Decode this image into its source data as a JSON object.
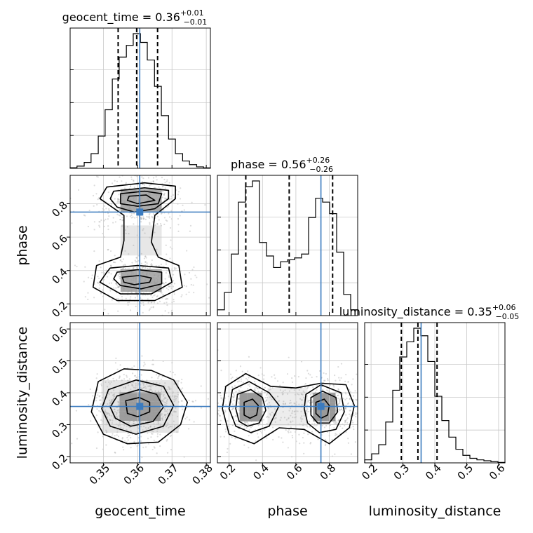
{
  "chart_data": {
    "type": "corner",
    "parameters": [
      "geocent_time",
      "phase",
      "luminosity_distance"
    ],
    "ranges": {
      "geocent_time": [
        0.3403,
        0.3812
      ],
      "phase": [
        0.13,
        0.97
      ],
      "luminosity_distance": [
        0.18,
        0.62
      ]
    },
    "ticks": {
      "geocent_time": [
        0.35,
        0.36,
        0.37,
        0.38
      ],
      "phase": [
        0.2,
        0.4,
        0.6,
        0.8
      ],
      "luminosity_distance": [
        0.2,
        0.3,
        0.4,
        0.5,
        0.6
      ]
    },
    "tick_labels": {
      "geocent_time": [
        "0.35",
        "0.36",
        "0.37",
        "0.38"
      ],
      "phase": [
        "0.2",
        "0.4",
        "0.6",
        "0.8"
      ],
      "luminosity_distance": [
        "0.2",
        "0.3",
        "0.4",
        "0.5",
        "0.6"
      ]
    },
    "truth": {
      "geocent_time": 0.3606,
      "phase": 0.75,
      "luminosity_distance": 0.357
    },
    "titles": {
      "geocent_time": {
        "name": "geocent_time",
        "median": "0.36",
        "plus": "+0.01",
        "minus": "−0.01"
      },
      "phase": {
        "name": "phase",
        "median": "0.56",
        "plus": "+0.26",
        "minus": "−0.26"
      },
      "luminosity_distance": {
        "name": "luminosity_distance",
        "median": "0.35",
        "plus": "+0.06",
        "minus": "−0.05"
      }
    },
    "quantiles": {
      "geocent_time": [
        0.3543,
        0.3597,
        0.3658
      ],
      "phase": [
        0.3,
        0.56,
        0.82
      ],
      "luminosity_distance": [
        0.295,
        0.347,
        0.407
      ]
    },
    "histograms": {
      "geocent_time": {
        "edges": [
          0.3403,
          0.3423,
          0.3444,
          0.3464,
          0.3485,
          0.3505,
          0.3526,
          0.3546,
          0.3567,
          0.3587,
          0.3608,
          0.3628,
          0.3649,
          0.3669,
          0.369,
          0.371,
          0.3731,
          0.3751,
          0.3772,
          0.3792,
          0.3812
        ],
        "counts": [
          0.4,
          1.5,
          4,
          10,
          22,
          40,
          61,
          76,
          84,
          92,
          86,
          74,
          56,
          36,
          20,
          10,
          5,
          2.5,
          1,
          0.3
        ]
      },
      "phase": {
        "edges": [
          0.13,
          0.172,
          0.214,
          0.256,
          0.298,
          0.34,
          0.382,
          0.424,
          0.466,
          0.508,
          0.55,
          0.592,
          0.634,
          0.676,
          0.718,
          0.76,
          0.802,
          0.844,
          0.886,
          0.928,
          0.97
        ],
        "counts": [
          3,
          12,
          32,
          59,
          67,
          70,
          38,
          31,
          25,
          28,
          29,
          30,
          32,
          51,
          61,
          59,
          53,
          33,
          11,
          3
        ]
      },
      "luminosity_distance": {
        "edges": [
          0.18,
          0.202,
          0.224,
          0.246,
          0.268,
          0.29,
          0.312,
          0.334,
          0.356,
          0.378,
          0.4,
          0.422,
          0.444,
          0.466,
          0.488,
          0.51,
          0.532,
          0.554,
          0.576,
          0.598,
          0.62
        ],
        "counts": [
          2,
          6,
          12,
          27,
          48,
          70,
          80,
          89,
          84,
          67,
          44,
          28,
          17,
          9,
          5,
          3,
          2,
          1.4,
          0.8,
          0.3
        ]
      }
    },
    "joint_2d": {
      "phase_vs_geocent_time": {
        "contours": [
          [
            [
              0.351,
              0.9
            ],
            [
              0.362,
              0.925
            ],
            [
              0.371,
              0.905
            ],
            [
              0.371,
              0.83
            ],
            [
              0.365,
              0.73
            ],
            [
              0.364,
              0.57
            ],
            [
              0.366,
              0.48
            ],
            [
              0.372,
              0.43
            ],
            [
              0.373,
              0.3
            ],
            [
              0.365,
              0.22
            ],
            [
              0.354,
              0.22
            ],
            [
              0.347,
              0.3
            ],
            [
              0.348,
              0.43
            ],
            [
              0.355,
              0.48
            ],
            [
              0.356,
              0.58
            ],
            [
              0.356,
              0.73
            ],
            [
              0.349,
              0.83
            ]
          ],
          [
            [
              0.353,
              0.875
            ],
            [
              0.362,
              0.895
            ],
            [
              0.369,
              0.88
            ],
            [
              0.369,
              0.83
            ],
            [
              0.365,
              0.77
            ],
            [
              0.359,
              0.75
            ],
            [
              0.354,
              0.78
            ],
            [
              0.352,
              0.83
            ]
          ],
          [
            [
              0.352,
              0.415
            ],
            [
              0.36,
              0.43
            ],
            [
              0.369,
              0.415
            ],
            [
              0.37,
              0.33
            ],
            [
              0.364,
              0.26
            ],
            [
              0.355,
              0.26
            ],
            [
              0.349,
              0.33
            ],
            [
              0.351,
              0.39
            ]
          ],
          [
            [
              0.355,
              0.86
            ],
            [
              0.362,
              0.875
            ],
            [
              0.367,
              0.86
            ],
            [
              0.366,
              0.8
            ],
            [
              0.36,
              0.785
            ],
            [
              0.355,
              0.8
            ]
          ],
          [
            [
              0.354,
              0.39
            ],
            [
              0.36,
              0.405
            ],
            [
              0.367,
              0.39
            ],
            [
              0.367,
              0.32
            ],
            [
              0.361,
              0.29
            ],
            [
              0.355,
              0.31
            ],
            [
              0.353,
              0.35
            ]
          ],
          [
            [
              0.3575,
              0.845
            ],
            [
              0.3625,
              0.852
            ],
            [
              0.365,
              0.82
            ],
            [
              0.36,
              0.8
            ],
            [
              0.357,
              0.82
            ]
          ],
          [
            [
              0.3555,
              0.36
            ],
            [
              0.3605,
              0.37
            ],
            [
              0.364,
              0.355
            ],
            [
              0.3635,
              0.33
            ],
            [
              0.359,
              0.315
            ],
            [
              0.356,
              0.33
            ]
          ]
        ]
      },
      "luminosity_distance_vs_geocent_time": {
        "contours": [
          [
            [
              0.3485,
              0.435
            ],
            [
              0.356,
              0.475
            ],
            [
              0.364,
              0.47
            ],
            [
              0.3705,
              0.44
            ],
            [
              0.3745,
              0.37
            ],
            [
              0.3725,
              0.3
            ],
            [
              0.366,
              0.245
            ],
            [
              0.357,
              0.24
            ],
            [
              0.35,
              0.27
            ],
            [
              0.3465,
              0.34
            ]
          ],
          [
            [
              0.3515,
              0.41
            ],
            [
              0.3595,
              0.44
            ],
            [
              0.3675,
              0.42
            ],
            [
              0.3705,
              0.36
            ],
            [
              0.3675,
              0.295
            ],
            [
              0.3595,
              0.27
            ],
            [
              0.352,
              0.295
            ],
            [
              0.3495,
              0.35
            ]
          ],
          [
            [
              0.354,
              0.39
            ],
            [
              0.3605,
              0.41
            ],
            [
              0.3655,
              0.395
            ],
            [
              0.3675,
              0.355
            ],
            [
              0.3645,
              0.31
            ],
            [
              0.358,
              0.295
            ],
            [
              0.3535,
              0.32
            ],
            [
              0.352,
              0.355
            ]
          ],
          [
            [
              0.3565,
              0.375
            ],
            [
              0.3605,
              0.385
            ],
            [
              0.3635,
              0.37
            ],
            [
              0.3635,
              0.34
            ],
            [
              0.36,
              0.325
            ],
            [
              0.357,
              0.335
            ]
          ]
        ]
      },
      "luminosity_distance_vs_phase": {
        "contours": [
          [
            [
              0.18,
              0.42
            ],
            [
              0.3,
              0.46
            ],
            [
              0.45,
              0.42
            ],
            [
              0.6,
              0.415
            ],
            [
              0.75,
              0.43
            ],
            [
              0.9,
              0.425
            ],
            [
              0.95,
              0.36
            ],
            [
              0.92,
              0.29
            ],
            [
              0.8,
              0.24
            ],
            [
              0.65,
              0.285
            ],
            [
              0.5,
              0.29
            ],
            [
              0.35,
              0.24
            ],
            [
              0.2,
              0.27
            ],
            [
              0.16,
              0.35
            ]
          ],
          [
            [
              0.22,
              0.41
            ],
            [
              0.32,
              0.435
            ],
            [
              0.44,
              0.4
            ],
            [
              0.5,
              0.36
            ],
            [
              0.44,
              0.295
            ],
            [
              0.33,
              0.275
            ],
            [
              0.24,
              0.295
            ],
            [
              0.2,
              0.35
            ]
          ],
          [
            [
              0.66,
              0.395
            ],
            [
              0.75,
              0.425
            ],
            [
              0.87,
              0.4
            ],
            [
              0.89,
              0.34
            ],
            [
              0.84,
              0.285
            ],
            [
              0.74,
              0.275
            ],
            [
              0.67,
              0.305
            ],
            [
              0.65,
              0.35
            ]
          ],
          [
            [
              0.25,
              0.395
            ],
            [
              0.33,
              0.41
            ],
            [
              0.4,
              0.385
            ],
            [
              0.42,
              0.345
            ],
            [
              0.38,
              0.305
            ],
            [
              0.31,
              0.295
            ],
            [
              0.26,
              0.31
            ],
            [
              0.24,
              0.35
            ]
          ],
          [
            [
              0.69,
              0.385
            ],
            [
              0.76,
              0.405
            ],
            [
              0.84,
              0.385
            ],
            [
              0.85,
              0.34
            ],
            [
              0.8,
              0.305
            ],
            [
              0.73,
              0.305
            ],
            [
              0.69,
              0.33
            ]
          ],
          [
            [
              0.29,
              0.37
            ],
            [
              0.34,
              0.38
            ],
            [
              0.375,
              0.36
            ],
            [
              0.365,
              0.33
            ],
            [
              0.325,
              0.32
            ],
            [
              0.29,
              0.33
            ]
          ],
          [
            [
              0.72,
              0.37
            ],
            [
              0.77,
              0.38
            ],
            [
              0.8,
              0.36
            ],
            [
              0.79,
              0.33
            ],
            [
              0.75,
              0.32
            ],
            [
              0.72,
              0.335
            ]
          ]
        ]
      }
    },
    "grid": true
  }
}
